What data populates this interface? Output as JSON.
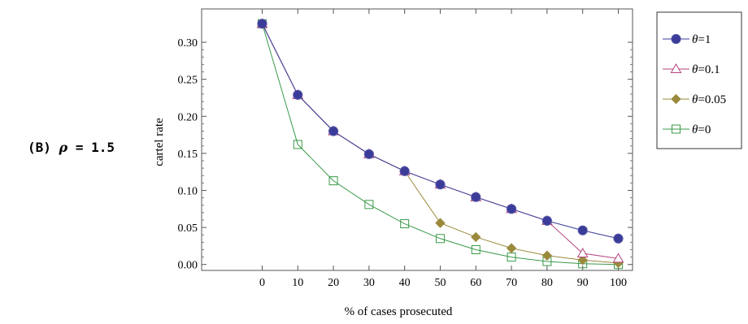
{
  "panel_label": {
    "prefix": "(B)",
    "symbol": "ρ",
    "suffix": " = 1.5"
  },
  "chart_data": {
    "type": "line",
    "xlabel": "% of cases prosecuted",
    "ylabel": "cartel rate",
    "x": [
      0,
      10,
      20,
      30,
      40,
      50,
      60,
      70,
      80,
      90,
      100
    ],
    "xticks": [
      "0",
      "10",
      "20",
      "30",
      "40",
      "50",
      "60",
      "70",
      "80",
      "90",
      "100"
    ],
    "xlim": [
      -17,
      104
    ],
    "yticks": [
      "0.00",
      "0.05",
      "0.10",
      "0.15",
      "0.20",
      "0.25",
      "0.30"
    ],
    "ytick_values": [
      0,
      0.05,
      0.1,
      0.15,
      0.2,
      0.25,
      0.3
    ],
    "ylim": [
      -0.008,
      0.345
    ],
    "grid": false,
    "legend_position": "right",
    "series": [
      {
        "name_symbol": "θ",
        "name_value": "=1",
        "color": "#3b3b9a",
        "marker": "circle",
        "values": [
          0.325,
          0.229,
          0.18,
          0.149,
          0.126,
          0.108,
          0.091,
          0.075,
          0.059,
          0.046,
          0.035
        ]
      },
      {
        "name_symbol": "θ",
        "name_value": "=0.1",
        "color": "#b5447f",
        "marker": "triangle",
        "values": [
          0.325,
          0.229,
          0.18,
          0.149,
          0.126,
          0.108,
          0.091,
          0.075,
          0.059,
          0.015,
          0.008
        ]
      },
      {
        "name_symbol": "θ",
        "name_value": "=0.05",
        "color": "#9a8a3c",
        "marker": "diamond",
        "values": [
          0.325,
          0.229,
          0.18,
          0.149,
          0.126,
          0.056,
          0.037,
          0.022,
          0.012,
          0.006,
          0.002
        ]
      },
      {
        "name_symbol": "θ",
        "name_value": "=0",
        "color": "#3a9a4a",
        "marker": "square",
        "values": [
          0.325,
          0.162,
          0.113,
          0.081,
          0.055,
          0.035,
          0.02,
          0.01,
          0.004,
          0.001,
          0
        ]
      }
    ]
  }
}
